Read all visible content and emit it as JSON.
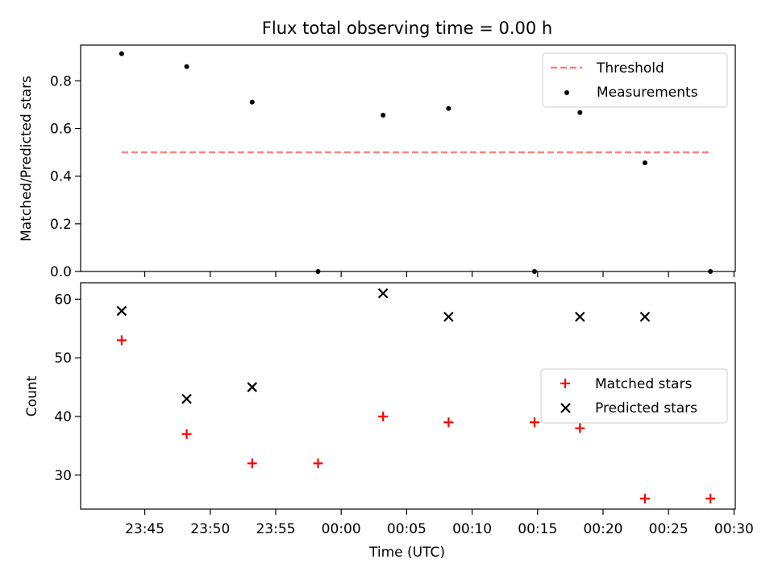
{
  "chart_data": {
    "title": "Flux total observing time = 0.00 h",
    "xlabel": "Time (UTC)",
    "x_tick_labels": [
      "23:45",
      "23:50",
      "23:55",
      "00:00",
      "00:05",
      "00:10",
      "00:15",
      "00:20",
      "00:25",
      "00:30"
    ],
    "x_tick_minutes": [
      -15,
      -10,
      -5,
      0,
      5,
      10,
      15,
      20,
      25,
      30
    ],
    "xlim_minutes": [
      -19.9,
      30.1
    ],
    "times": [
      "23:43:14",
      "23:48:12",
      "23:53:12",
      "23:58:14",
      "00:03:12",
      "00:08:12",
      "00:14:46",
      "00:18:14",
      "00:23:12",
      "00:28:12"
    ],
    "panels": [
      {
        "type": "scatter",
        "ylabel": "Matched/Predicted stars",
        "ylim": [
          0,
          0.95
        ],
        "yticks": [
          0.0,
          0.2,
          0.4,
          0.6,
          0.8
        ],
        "ytick_labels": [
          "0.0",
          "0.2",
          "0.4",
          "0.6",
          "0.8"
        ],
        "threshold": {
          "name": "Threshold",
          "value": 0.5,
          "color": "#ff7f7f",
          "style": "dashed"
        },
        "series": [
          {
            "name": "Measurements",
            "marker": "dot",
            "color": "#000000",
            "values": [
              0.914,
              0.86,
              0.711,
              0.0,
              0.656,
              0.684,
              0.0,
              0.667,
              0.456,
              0.0
            ]
          }
        ],
        "legend": "top-right"
      },
      {
        "type": "scatter",
        "ylabel": "Count",
        "ylim": [
          24.2,
          62.8
        ],
        "yticks": [
          30,
          40,
          50,
          60
        ],
        "ytick_labels": [
          "30",
          "40",
          "50",
          "60"
        ],
        "series": [
          {
            "name": "Matched stars",
            "marker": "plus",
            "color": "#ff0000",
            "values": [
              53,
              37,
              32,
              32,
              40,
              39,
              39,
              38,
              26,
              26
            ]
          },
          {
            "name": "Predicted stars",
            "marker": "x",
            "color": "#000000",
            "values": [
              58,
              43,
              45,
              null,
              61,
              57,
              null,
              57,
              57,
              null
            ]
          }
        ],
        "legend": "center-right"
      }
    ]
  }
}
